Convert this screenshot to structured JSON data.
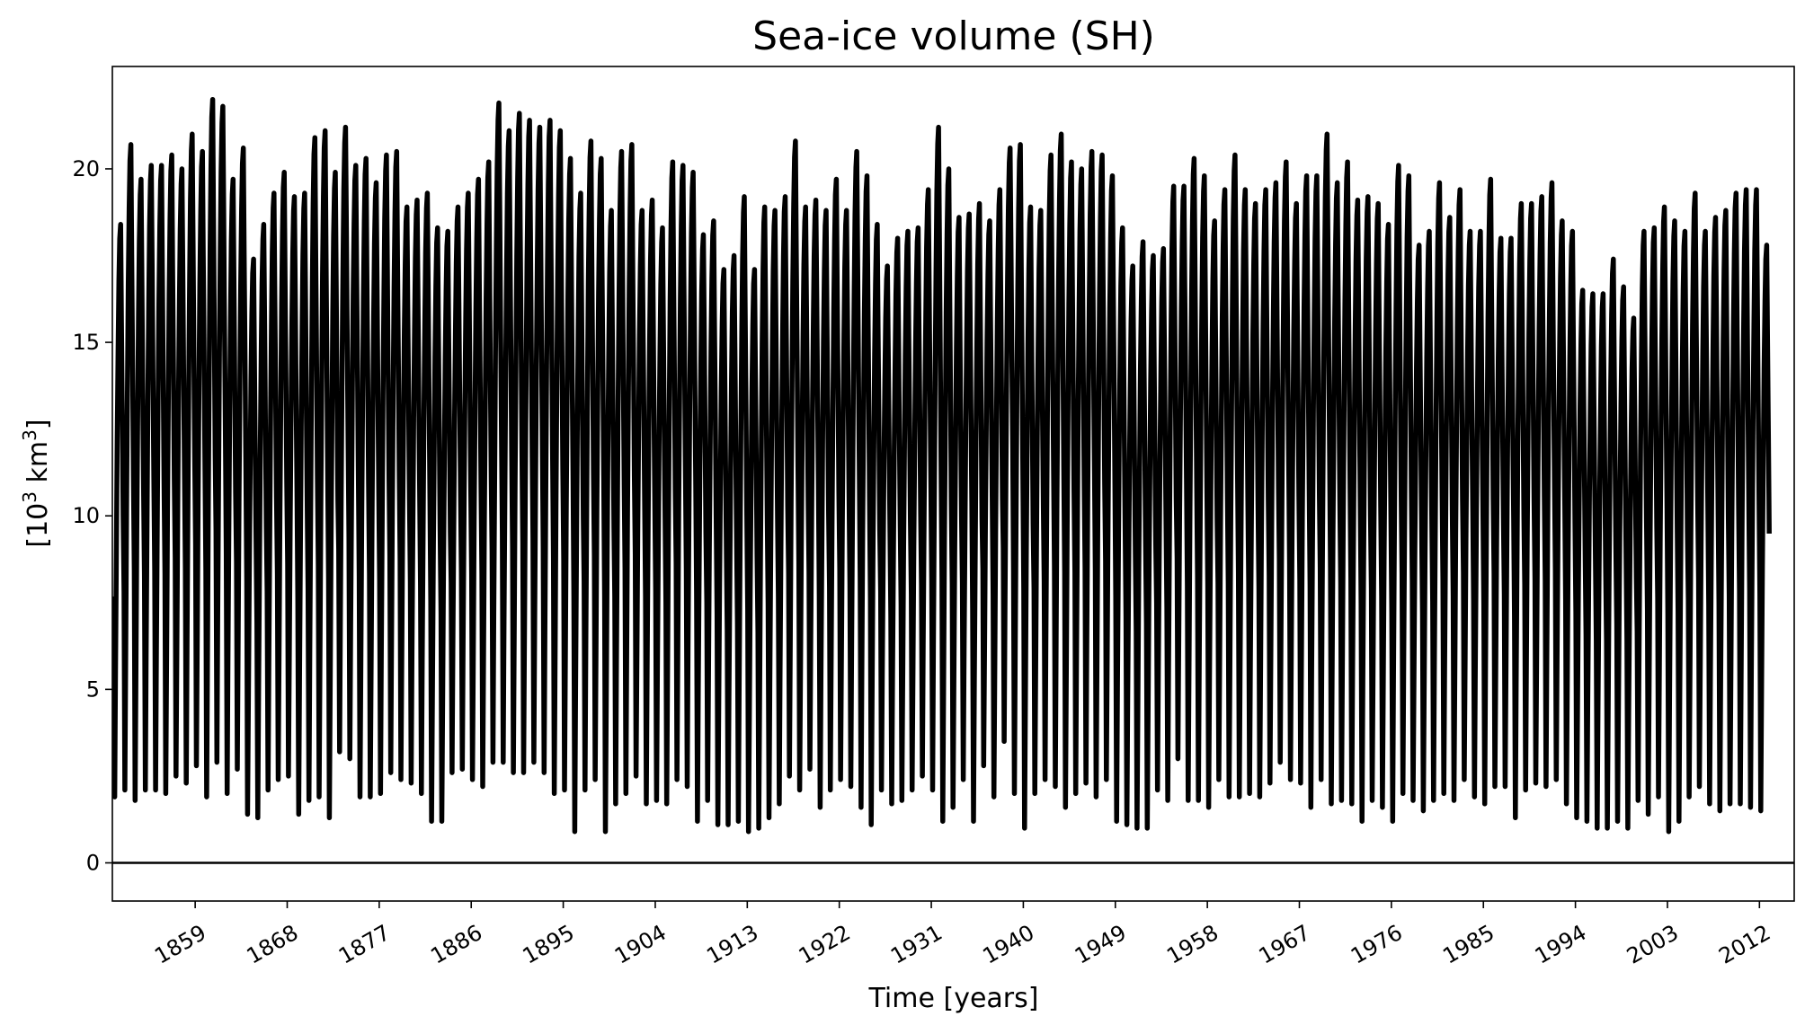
{
  "chart_data": {
    "type": "line",
    "title": "Sea-ice volume (SH)",
    "xlabel": "Time [years]",
    "ylabel_main": "[10",
    "ylabel_sup": "3",
    "ylabel_rest": " km",
    "ylabel_sup2": "3",
    "ylabel_end": "]",
    "xlim": [
      1850.9,
      2015.4
    ],
    "ylim": [
      -1.1,
      22.95
    ],
    "x_ticks": [
      1859,
      1868,
      1877,
      1886,
      1895,
      1904,
      1913,
      1922,
      1931,
      1940,
      1949,
      1958,
      1967,
      1976,
      1985,
      1994,
      2003,
      2012
    ],
    "x_tick_labels": [
      "1859",
      "1868",
      "1877",
      "1886",
      "1895",
      "1904",
      "1913",
      "1922",
      "1931",
      "1940",
      "1949",
      "1958",
      "1967",
      "1976",
      "1985",
      "1994",
      "2003",
      "2012"
    ],
    "y_ticks": [
      0,
      5,
      10,
      15,
      20
    ],
    "y_tick_labels": [
      "0",
      "5",
      "10",
      "15",
      "20"
    ],
    "reference_line_y": 0,
    "line_color": "#000000",
    "grid": false,
    "legend": "none",
    "series": [
      {
        "resolution": "monthly (seasonal cycle: minimum ~Feb, maximum ~Sep)",
        "start_year": 1851,
        "annual_max": [
          18.4,
          20.7,
          19.7,
          20.1,
          20.1,
          20.4,
          20.0,
          21.0,
          20.5,
          22.0,
          21.8,
          19.7,
          20.6,
          17.4,
          18.4,
          19.3,
          19.9,
          19.2,
          19.3,
          20.9,
          21.1,
          19.9,
          21.2,
          20.1,
          20.3,
          19.6,
          20.4,
          20.5,
          18.9,
          19.1,
          19.3,
          18.3,
          18.2,
          18.9,
          19.3,
          19.7,
          20.2,
          21.9,
          21.1,
          21.6,
          21.4,
          21.2,
          21.4,
          21.1,
          20.3,
          19.3,
          20.8,
          20.3,
          18.8,
          20.5,
          20.7,
          18.8,
          19.1,
          18.3,
          20.2,
          20.1,
          19.9,
          18.1,
          18.5,
          17.1,
          17.5,
          19.2,
          17.1,
          18.9,
          18.8,
          19.2,
          20.8,
          18.9,
          19.1,
          18.8,
          19.7,
          18.8,
          20.5,
          19.8,
          18.4,
          17.2,
          18.0,
          18.2,
          18.3,
          19.4,
          21.2,
          20.0,
          18.6,
          18.7,
          19.0,
          18.5,
          19.4,
          20.6,
          20.7,
          18.9,
          18.8,
          20.4,
          21.0,
          20.2,
          20.0,
          20.5,
          20.4,
          19.8,
          18.3,
          17.2,
          17.9,
          17.5,
          17.7,
          19.5,
          19.5,
          20.3,
          19.8,
          18.5,
          19.4,
          20.4,
          19.4,
          19.0,
          19.4,
          19.6,
          20.2,
          19.0,
          19.8,
          19.8,
          21.0,
          19.6,
          20.2,
          19.1,
          19.2,
          19.0,
          18.4,
          20.1,
          19.8,
          17.8,
          18.2,
          19.6,
          18.6,
          19.4,
          18.2,
          18.2,
          19.7,
          18.0,
          18.0,
          19.0,
          19.0,
          19.2,
          19.6,
          18.5,
          18.2,
          16.5,
          16.4,
          16.4,
          17.4,
          16.6,
          15.7,
          18.2,
          18.3,
          18.9,
          18.5,
          18.2,
          19.3,
          18.2,
          18.6,
          18.8,
          19.3,
          19.4,
          19.4,
          17.8
        ],
        "annual_min": [
          1.9,
          2.1,
          1.8,
          2.1,
          2.1,
          2.0,
          2.5,
          2.3,
          2.8,
          1.9,
          2.9,
          2.0,
          2.7,
          1.4,
          1.3,
          2.1,
          2.4,
          2.5,
          1.4,
          1.8,
          1.9,
          1.3,
          3.2,
          3.0,
          1.9,
          1.9,
          2.0,
          2.6,
          2.4,
          2.3,
          2.0,
          1.2,
          1.2,
          2.6,
          2.7,
          2.4,
          2.2,
          2.9,
          2.9,
          2.6,
          2.6,
          2.9,
          2.6,
          2.0,
          2.1,
          0.9,
          2.1,
          2.4,
          0.9,
          1.7,
          2.0,
          2.5,
          1.7,
          1.8,
          1.7,
          2.4,
          2.2,
          1.2,
          1.8,
          1.1,
          1.1,
          1.2,
          0.9,
          1.0,
          1.3,
          1.7,
          2.5,
          2.1,
          2.7,
          1.6,
          2.1,
          2.4,
          2.2,
          1.6,
          1.1,
          2.1,
          1.7,
          1.8,
          2.1,
          2.5,
          2.1,
          1.2,
          1.6,
          2.4,
          1.2,
          2.8,
          1.9,
          3.5,
          2.0,
          1.0,
          2.0,
          2.4,
          2.2,
          1.6,
          2.0,
          2.3,
          1.9,
          2.4,
          1.2,
          1.1,
          1.0,
          1.0,
          2.1,
          1.8,
          3.0,
          1.8,
          1.8,
          1.6,
          2.4,
          1.9,
          1.9,
          2.0,
          1.9,
          2.3,
          2.9,
          2.4,
          2.3,
          1.6,
          2.4,
          1.7,
          1.8,
          1.7,
          1.2,
          1.8,
          1.6,
          1.2,
          2.0,
          1.8,
          1.5,
          1.8,
          2.0,
          1.8,
          2.4,
          1.9,
          1.7,
          2.2,
          2.2,
          1.3,
          2.1,
          2.3,
          2.2,
          2.4,
          1.7,
          1.3,
          1.2,
          1.0,
          1.0,
          1.2,
          1.0,
          1.8,
          1.4,
          1.9,
          0.9,
          1.2,
          1.9,
          2.2,
          1.7,
          1.5,
          1.7,
          1.7,
          1.6,
          1.5
        ]
      }
    ]
  }
}
